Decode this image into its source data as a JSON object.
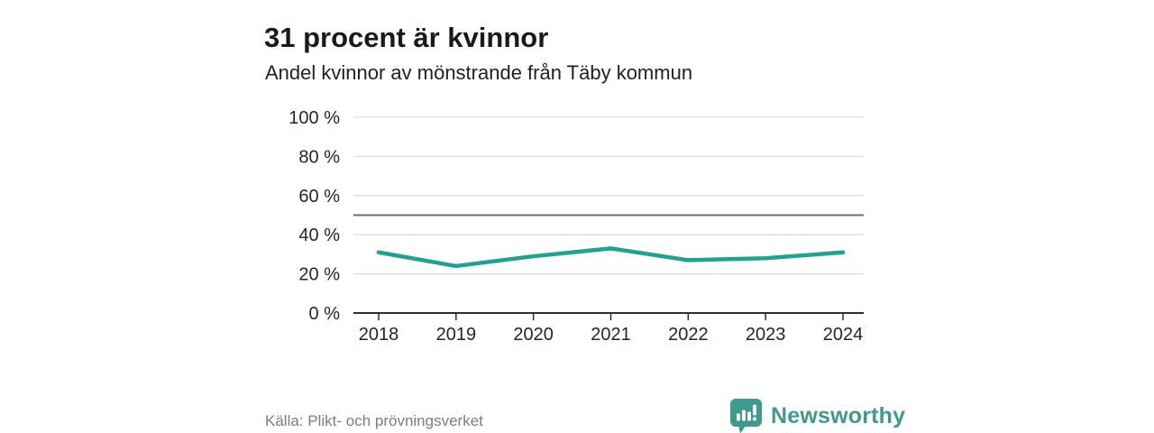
{
  "chart_data": {
    "type": "line",
    "title": "31 procent är kvinnor",
    "subtitle": "Andel kvinnor av mönstrande från Täby kommun",
    "categories": [
      "2018",
      "2019",
      "2020",
      "2021",
      "2022",
      "2023",
      "2024"
    ],
    "series": [
      {
        "name": "Andel kvinnor",
        "values": [
          31,
          24,
          29,
          33,
          27,
          28,
          31
        ]
      }
    ],
    "ylim": [
      0,
      100
    ],
    "yticks": [
      0,
      20,
      40,
      60,
      80,
      100
    ],
    "ytick_labels": [
      "0 %",
      "20 %",
      "40 %",
      "60 %",
      "80 %",
      "100 %"
    ],
    "reference_line_value": 50,
    "grid": "horizontal",
    "legend": "none",
    "line_color": "#1ea294",
    "source": "Källa: Plikt- och prövningsverket"
  },
  "branding": {
    "logo_text": "Newsworthy",
    "logo_color": "#3f9a8c"
  }
}
